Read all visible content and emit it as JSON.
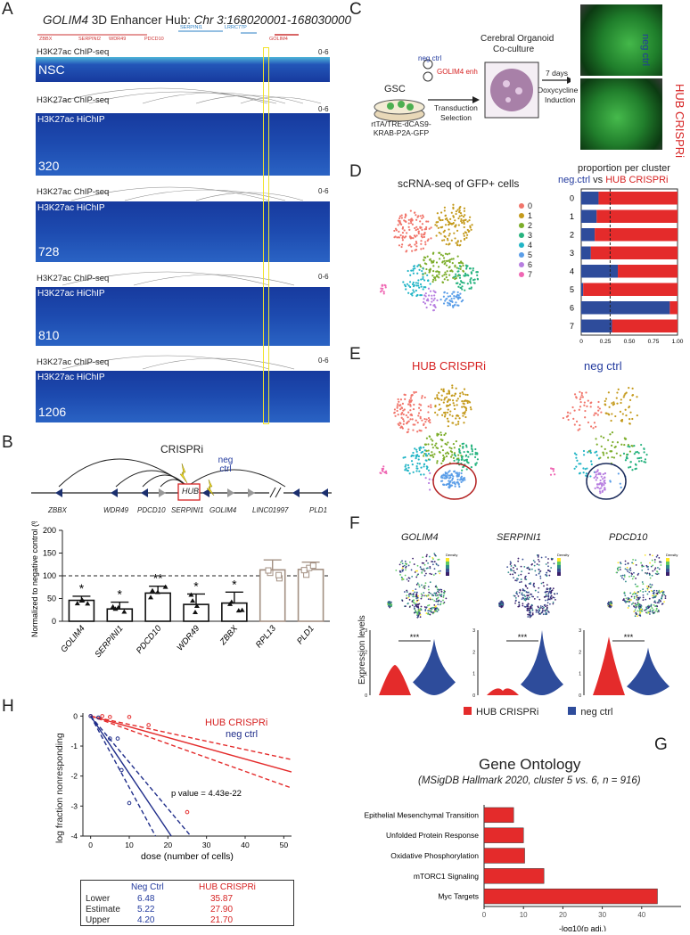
{
  "panelA": {
    "letter": "A",
    "title_gene": "GOLIM4",
    "title_rest": " 3D Enhancer Hub: ",
    "title_coords": "Chr 3:168020001-168030000",
    "genes_top": [
      "ZBBX",
      "SERPINI2",
      "WDR49",
      "PDCD10",
      "SERPINI1",
      "LRRC77P",
      "GOLIM4"
    ],
    "tracks": [
      {
        "chip": "H3K27ac ChIP-seq",
        "hichip": "",
        "sample": "NSC",
        "range": "0-6"
      },
      {
        "chip": "H3K27ac ChIP-seq",
        "hichip": "H3K27ac HiChIP",
        "sample": "320",
        "range": "0-6"
      },
      {
        "chip": "H3K27ac ChIP-seq",
        "hichip": "H3K27ac HiChIP",
        "sample": "728",
        "range": "0-6"
      },
      {
        "chip": "H3K27ac ChIP-seq",
        "hichip": "H3K27ac HiChIP",
        "sample": "810",
        "range": "0-6"
      },
      {
        "chip": "H3K27ac ChIP-seq",
        "hichip": "H3K27ac HiChIP",
        "sample": "1206",
        "range": "0-6"
      }
    ]
  },
  "panelB": {
    "letter": "B",
    "crispri": "CRISPRi",
    "neg_ctrl": "neg ctrl",
    "hub": "HUB",
    "locus_genes": [
      "ZBBX",
      "WDR49",
      "PDCD10",
      "SERPINI1",
      "GOLIM4",
      "LINC01997",
      "PLD1"
    ],
    "bar_stars": [
      "*",
      "*",
      "**",
      "*",
      "*",
      "",
      ""
    ],
    "chart_data": {
      "type": "bar",
      "categories": [
        "GOLIM4",
        "SERPINI1",
        "PDCD10",
        "WDR49",
        "ZBBX",
        "RPL13",
        "PLD1"
      ],
      "values": [
        46,
        27,
        62,
        37,
        40,
        113,
        114
      ],
      "errors": [
        9,
        15,
        15,
        23,
        24,
        22,
        16
      ],
      "ylabel": "Normalized to negative control (%)",
      "ylim": [
        0,
        200
      ],
      "yticks": [
        "0",
        "50",
        "100",
        "150",
        "200"
      ],
      "reference_line": 100,
      "colors": [
        "#111111",
        "#111111",
        "#111111",
        "#111111",
        "#111111",
        "#a39083",
        "#a39083"
      ]
    }
  },
  "panelC": {
    "letter": "C",
    "gsc": "GSC",
    "vector": "rtTA/TRE-dCAS9-KRAB-P2A-GFP",
    "neg_ctrl": "neg ctrl",
    "enh": "GOLIM4 enh",
    "transduction": "Transduction",
    "selection": "Selection",
    "organoid_title1": "Cerebral Organoid",
    "organoid_title2": "Co-culture",
    "days": "7 days",
    "dox1": "Doxycycline",
    "dox2": "Induction",
    "img1_label": "neg ctrl",
    "img2_label": "HUB CRISPRi"
  },
  "panelD": {
    "letter": "D",
    "umap_title": "scRNA-seq of GFP+ cells",
    "clusters": [
      "0",
      "1",
      "2",
      "3",
      "4",
      "5",
      "6",
      "7"
    ],
    "cluster_colors": [
      "#f1756b",
      "#c49a1c",
      "#7cad2a",
      "#27b37f",
      "#22b5c6",
      "#5b9ee8",
      "#b77ee0",
      "#ef67b3"
    ],
    "prop_title": "proportion per cluster",
    "prop_sub_a": "neg.ctrl",
    "prop_sub_vs": " vs ",
    "prop_sub_b": "HUB CRISPRi",
    "chart_data": {
      "type": "bar",
      "orientation": "horizontal",
      "categories": [
        "0",
        "1",
        "2",
        "3",
        "4",
        "5",
        "6",
        "7"
      ],
      "series": [
        {
          "name": "neg.ctrl",
          "color": "#2e4c9b",
          "values": [
            0.18,
            0.16,
            0.14,
            0.1,
            0.38,
            0.02,
            0.92,
            0.32
          ]
        },
        {
          "name": "HUB CRISPRi",
          "color": "#e42b2b",
          "values": [
            0.82,
            0.84,
            0.86,
            0.9,
            0.62,
            0.98,
            0.08,
            0.68
          ]
        }
      ],
      "xticks": [
        "0",
        "0.25",
        "0.50",
        "0.75",
        "1.00"
      ],
      "xlim": [
        0,
        1
      ],
      "reference_line": 0.3
    }
  },
  "panelE": {
    "letter": "E",
    "left_title": "HUB CRISPRi",
    "right_title": "neg ctrl"
  },
  "panelF": {
    "letter": "F",
    "genes": [
      "GOLIM4",
      "SERPINI1",
      "PDCD10"
    ],
    "legend_title": "Density",
    "ylabel": "Expression levels",
    "stars": [
      "***",
      "***",
      "***"
    ],
    "legend_hub": "HUB CRISPRi",
    "legend_neg": "neg ctrl",
    "violin_yticks": [
      [
        "0",
        "1",
        "2",
        "3"
      ],
      [
        "0",
        "1",
        "2",
        "3"
      ],
      [
        "0",
        "1",
        "2",
        "3"
      ]
    ]
  },
  "panelG": {
    "letter": "G",
    "title": "Gene Ontology",
    "subtitle": "(MSigDB Hallmark 2020, cluster 5 vs. 6, n = 916)",
    "chart_data": {
      "type": "bar",
      "orientation": "horizontal",
      "categories": [
        "Epithelial Mesenchymal Transition",
        "Unfolded Protein Response",
        "Oxidative Phosphorylation",
        "mTORC1 Signaling",
        "Myc Targets"
      ],
      "values": [
        7.5,
        10,
        10.3,
        15.2,
        44
      ],
      "xlabel": "-log10(p adj.)",
      "xticks": [
        "0",
        "10",
        "20",
        "30",
        "40"
      ],
      "xlim": [
        0,
        50
      ],
      "color": "#e42b2b"
    }
  },
  "panelH": {
    "letter": "H",
    "legend_hub": "HUB CRISPRi",
    "legend_neg": "neg ctrl",
    "pvalue": "p value = 4.43e-22",
    "chart_data": {
      "type": "line",
      "xlabel": "dose (number of cells)",
      "ylabel": "log fraction nonresponding",
      "xlim": [
        -2,
        52
      ],
      "ylim": [
        -4,
        0.1
      ],
      "xticks": [
        "0",
        "10",
        "20",
        "30",
        "40",
        "50"
      ],
      "yticks": [
        "0",
        "-1",
        "-2",
        "-3",
        "-4"
      ],
      "series": [
        {
          "name": "HUB CRISPRi",
          "color": "#e42b2b",
          "estimate_slope": -0.0358,
          "lower_slope": -0.0279,
          "upper_slope": -0.0461,
          "points": [
            [
              0,
              0
            ],
            [
              3,
              0
            ],
            [
              5,
              -0.03
            ],
            [
              10,
              -0.03
            ],
            [
              15,
              -0.3
            ],
            [
              25,
              -3.2
            ]
          ]
        },
        {
          "name": "neg ctrl",
          "color": "#1f2d8a",
          "estimate_slope": -0.1916,
          "lower_slope": -0.1543,
          "upper_slope": -0.2381,
          "points": [
            [
              0,
              0
            ],
            [
              2,
              -0.05
            ],
            [
              5,
              -0.75
            ],
            [
              7,
              -0.75
            ],
            [
              8,
              -1.8
            ],
            [
              10,
              -2.9
            ]
          ]
        }
      ]
    },
    "table": {
      "headers": [
        "",
        "Neg Ctrl",
        "HUB CRISPRi"
      ],
      "rows": [
        [
          "Lower",
          "6.48",
          "35.87"
        ],
        [
          "Estimate",
          "5.22",
          "27.90"
        ],
        [
          "Upper",
          "4.20",
          "21.70"
        ]
      ]
    }
  }
}
